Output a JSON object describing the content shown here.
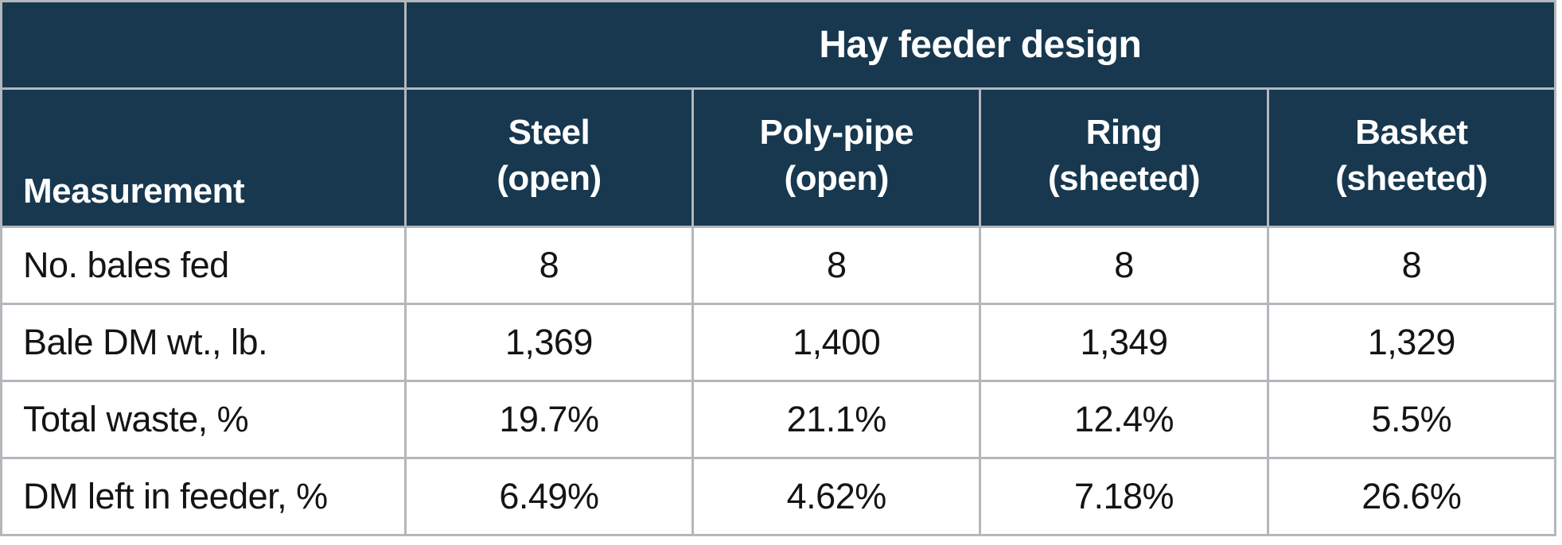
{
  "chart_data": {
    "type": "table",
    "title": "Hay feeder design",
    "row_header_label": "Measurement",
    "columns": [
      {
        "line1": "Steel",
        "line2": "(open)"
      },
      {
        "line1": "Poly-pipe",
        "line2": "(open)"
      },
      {
        "line1": "Ring",
        "line2": "(sheeted)"
      },
      {
        "line1": "Basket",
        "line2": "(sheeted)"
      }
    ],
    "rows": [
      {
        "label": "No. bales fed",
        "values": [
          "8",
          "8",
          "8",
          "8"
        ]
      },
      {
        "label": "Bale DM wt., lb.",
        "values": [
          "1,369",
          "1,400",
          "1,349",
          "1,329"
        ]
      },
      {
        "label": "Total waste, %",
        "values": [
          "19.7%",
          "21.1%",
          "12.4%",
          "5.5%"
        ]
      },
      {
        "label": "DM left in feeder, %",
        "values": [
          "6.49%",
          "4.62%",
          "7.18%",
          "26.6%"
        ]
      }
    ]
  },
  "colors": {
    "header_bg": "#17384f",
    "header_text": "#ffffff",
    "grid_line": "#b4b7bb",
    "body_text": "#141414",
    "body_bg": "#ffffff"
  }
}
